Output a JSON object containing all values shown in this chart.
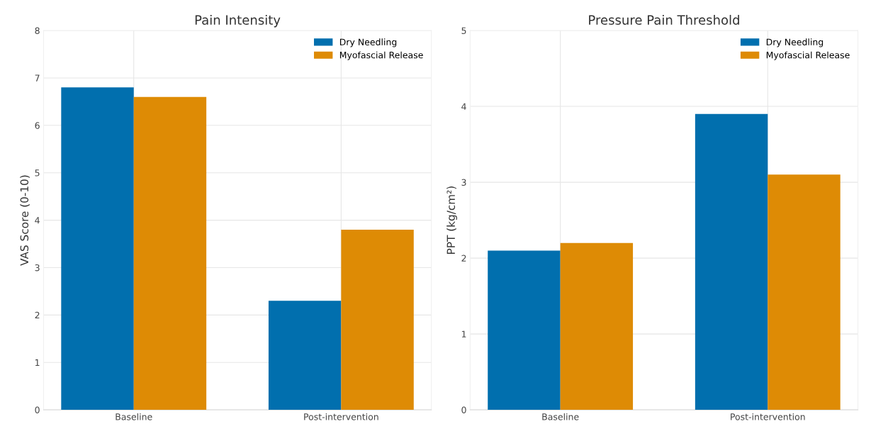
{
  "chart_data": [
    {
      "type": "bar",
      "title": "Pain Intensity",
      "ylabel": "VAS Score (0-10)",
      "categories": [
        "Baseline",
        "Post-intervention"
      ],
      "series": [
        {
          "name": "Dry Needling",
          "color": "#016fae",
          "values": [
            6.8,
            2.3
          ]
        },
        {
          "name": "Myofascial Release",
          "color": "#de8b05",
          "values": [
            6.6,
            3.8
          ]
        }
      ],
      "ylim": [
        0,
        8
      ],
      "yticks": [
        0,
        1,
        2,
        3,
        4,
        5,
        6,
        7,
        8
      ],
      "grid": true,
      "legend": "top right"
    },
    {
      "type": "bar",
      "title": "Pressure Pain Threshold",
      "ylabel": "PPT (kg/cm²)",
      "categories": [
        "Baseline",
        "Post-intervention"
      ],
      "series": [
        {
          "name": "Dry Needling",
          "color": "#016fae",
          "values": [
            2.1,
            3.9
          ]
        },
        {
          "name": "Myofascial Release",
          "color": "#de8b05",
          "values": [
            2.2,
            3.1
          ]
        }
      ],
      "ylim": [
        0,
        5
      ],
      "yticks": [
        0,
        1,
        2,
        3,
        4,
        5
      ],
      "grid": true,
      "legend": "top right"
    }
  ]
}
